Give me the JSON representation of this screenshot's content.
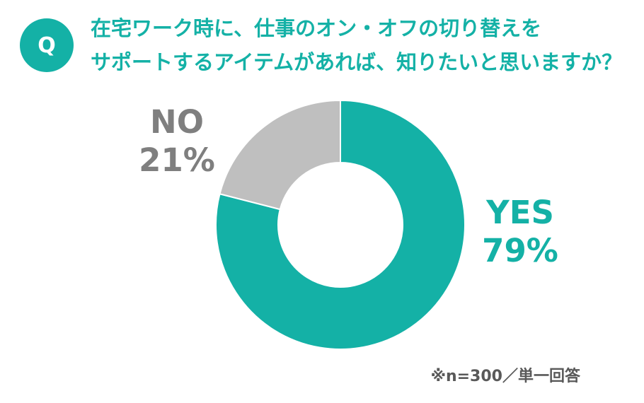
{
  "badge": {
    "label": "Q"
  },
  "title": {
    "line1": "在宅ワーク時に、仕事のオン・オフの切り替えを",
    "line2": "サポートするアイテムがあれば、知りたいと思いますか？"
  },
  "chart_data": {
    "type": "pie",
    "donut": true,
    "slices": [
      {
        "label": "YES",
        "value": 79,
        "value_label": "79%",
        "color": "#14b1a6"
      },
      {
        "label": "NO",
        "value": 21,
        "value_label": "21%",
        "color": "#bfbfbf"
      }
    ]
  },
  "note": "※n=300／単一回答"
}
